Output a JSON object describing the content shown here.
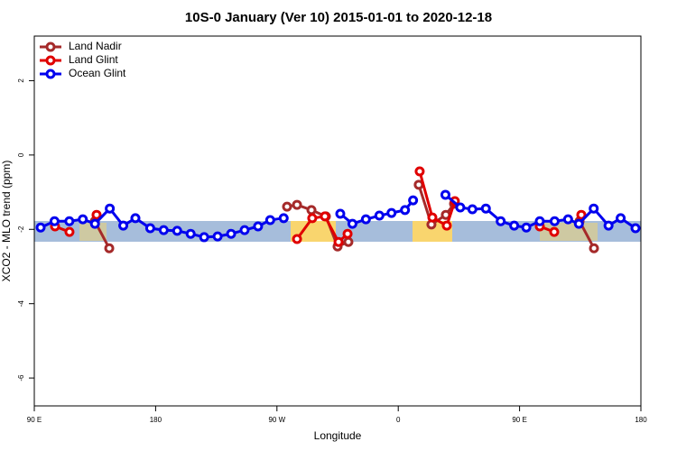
{
  "chart_data": {
    "type": "line",
    "title": "10S-0 January (Ver 10)   2015-01-01 to 2020-12-18",
    "x_label": "Longitude",
    "y_label": "XCO2 - MLO trend (ppm)",
    "xlim": [
      90,
      540
    ],
    "xticks": [
      {
        "value": 90,
        "label": "90 E"
      },
      {
        "value": 180,
        "label": "180"
      },
      {
        "value": 270,
        "label": "90 W"
      },
      {
        "value": 360,
        "label": "0"
      },
      {
        "value": 450,
        "label": "90 E"
      },
      {
        "value": 540,
        "label": "180"
      }
    ],
    "ylim": [
      -6.75,
      3.2
    ],
    "yticks": [
      -6,
      -4,
      -2,
      0,
      2
    ],
    "legend": "top-left",
    "series": [
      {
        "name": "Land Nadir",
        "color": "#a52a2a",
        "x": [
          134.9,
          145.6,
          null,
          277.5,
          284.9,
          295.6,
          306.3,
          315,
          323,
          null,
          375.2,
          384.6,
          395.3,
          401.4,
          null,
          494.5,
          505.2
        ],
        "values": [
          -1.78,
          -2.51,
          null,
          -1.39,
          -1.34,
          -1.48,
          -1.65,
          -2.46,
          -2.34,
          null,
          -0.8,
          -1.87,
          -1.61,
          -1.31,
          null,
          -1.78,
          -2.51
        ]
      },
      {
        "name": "Land Glint",
        "color": "#e00000",
        "x": [
          105.4,
          116.1,
          null,
          136.2,
          null,
          284.9,
          296.2,
          305.6,
          315.7,
          322.4,
          null,
          375.9,
          385.3,
          396,
          402,
          null,
          465,
          475.7,
          null,
          495.8
        ],
        "values": [
          -1.92,
          -2.07,
          null,
          -1.61,
          null,
          -2.26,
          -1.7,
          -1.65,
          -2.34,
          -2.12,
          null,
          -0.44,
          -1.68,
          -1.9,
          -1.24,
          null,
          -1.92,
          -2.07,
          null,
          -1.61
        ]
      },
      {
        "name": "Ocean Glint",
        "color": "#0000ee",
        "x": [
          94.7,
          105,
          116,
          126,
          135,
          146,
          156,
          165,
          176,
          186,
          196,
          206,
          216,
          226,
          236,
          246,
          256,
          265,
          275,
          null,
          317,
          326,
          336,
          346,
          355,
          365,
          371,
          null,
          395,
          406,
          415,
          425,
          436,
          446,
          455,
          465,
          476,
          486,
          494,
          505,
          516,
          525,
          536
        ],
        "values": [
          -1.95,
          -1.78,
          -1.78,
          -1.73,
          -1.85,
          -1.44,
          -1.9,
          -1.7,
          -1.97,
          -2.02,
          -2.04,
          -2.12,
          -2.21,
          -2.19,
          -2.12,
          -2.02,
          -1.92,
          -1.75,
          -1.7,
          null,
          -1.58,
          -1.85,
          -1.73,
          -1.63,
          -1.56,
          -1.48,
          -1.22,
          null,
          -1.07,
          -1.41,
          -1.46,
          -1.44,
          -1.78,
          -1.9,
          -1.95,
          -1.78,
          -1.78,
          -1.73,
          -1.85,
          -1.44,
          -1.9,
          -1.7,
          -1.97
        ]
      }
    ]
  }
}
